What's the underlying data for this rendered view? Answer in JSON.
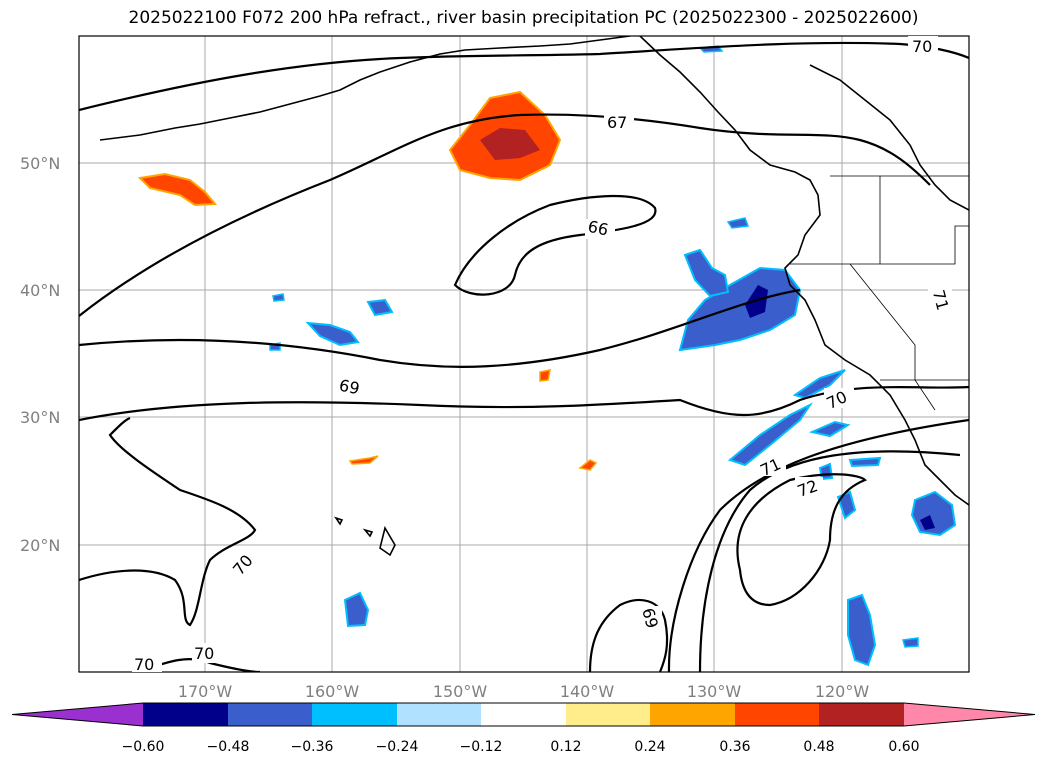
{
  "title": "2025022100 F072 200 hPa refract., river basin precipitation PC (2025022300 - 2025022600)",
  "lat_ticks": [
    "50°N",
    "40°N",
    "30°N",
    "20°N"
  ],
  "lon_ticks": [
    "170°W",
    "160°W",
    "150°W",
    "140°W",
    "130°W",
    "120°W"
  ],
  "contour_labels": [
    "70",
    "67",
    "66",
    "69",
    "70",
    "71",
    "71",
    "72",
    "69",
    "70",
    "70",
    "70"
  ],
  "colorbar": {
    "ticks": [
      "−0.60",
      "−0.48",
      "−0.36",
      "−0.24",
      "−0.12",
      "0.12",
      "0.24",
      "0.36",
      "0.48",
      "0.60"
    ],
    "colors": [
      "#9b30d0",
      "#00008b",
      "#3a5fcd",
      "#00bfff",
      "#b0e2ff",
      "#ffffff",
      "#ffec8b",
      "#ffa500",
      "#ff4500",
      "#b22222",
      "#ff88aa"
    ]
  }
}
